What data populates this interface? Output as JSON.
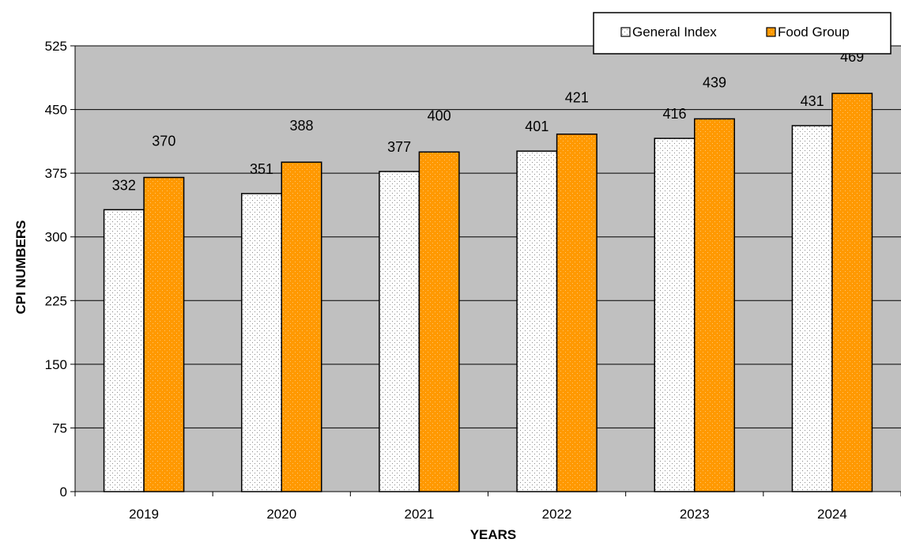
{
  "chart_data": {
    "type": "bar",
    "categories": [
      "2019",
      "2020",
      "2021",
      "2022",
      "2023",
      "2024"
    ],
    "series": [
      {
        "name": "General Index",
        "values": [
          332,
          351,
          377,
          401,
          416,
          431
        ],
        "color": "#ffffff",
        "pattern": "dotted"
      },
      {
        "name": "Food Group",
        "values": [
          370,
          388,
          400,
          421,
          439,
          469
        ],
        "color": "#ff9900",
        "pattern": "dotted"
      }
    ],
    "title": "",
    "xlabel": "YEARS",
    "ylabel": "CPI NUMBERS",
    "ylim": [
      0,
      525
    ],
    "yticks": [
      0,
      75,
      150,
      225,
      300,
      375,
      450,
      525
    ],
    "grid": true,
    "legend": "top-right",
    "plot_background": "#c0c0c0",
    "data_labels": true
  }
}
